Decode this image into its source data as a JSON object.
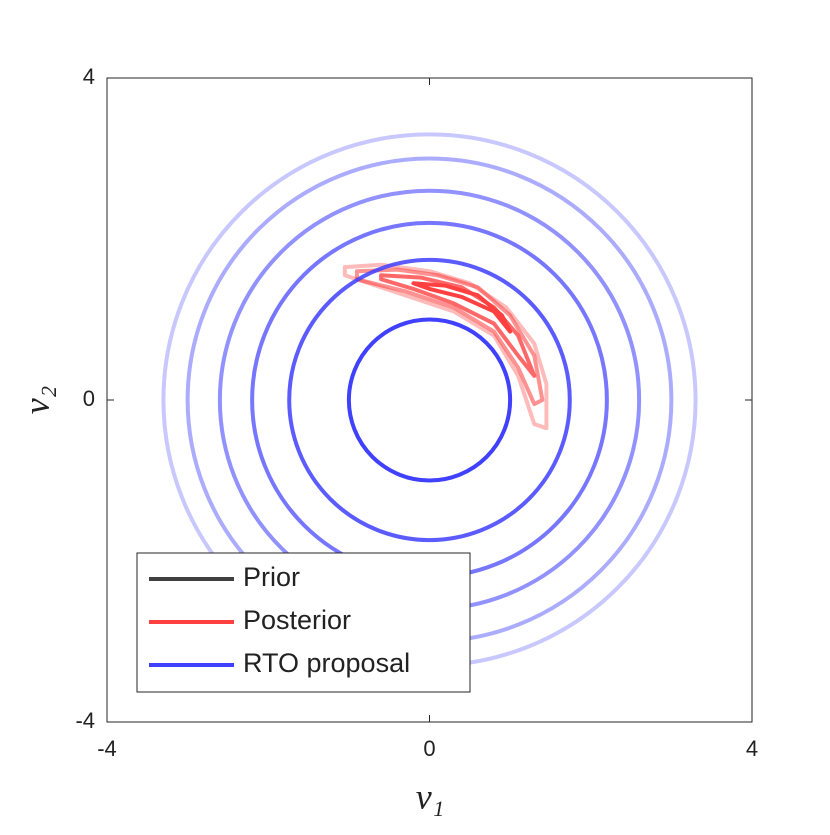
{
  "chart_data": {
    "type": "contour",
    "xlabel": "v₁",
    "ylabel": "v₂",
    "xlim": [
      -4,
      4
    ],
    "ylim": [
      -4,
      4
    ],
    "xticks": [
      -4,
      0,
      4
    ],
    "yticks": [
      -4,
      0,
      4
    ],
    "legend": "lower left",
    "series": [
      {
        "name": "Prior",
        "color": "#404040"
      },
      {
        "name": "Posterior",
        "color": "#ff4040",
        "contours": [
          {
            "x": [
              -1.05,
              -0.6,
              0,
              0.5,
              0.95,
              1.3,
              1.45,
              1.45,
              1.3,
              1.1,
              0.8,
              0.3,
              -0.3,
              -1.05
            ],
            "y": [
              1.65,
              1.68,
              1.6,
              1.45,
              1.15,
              0.7,
              0.2,
              -0.35,
              -0.3,
              0.3,
              0.8,
              1.1,
              1.3,
              1.55
            ]
          },
          {
            "x": [
              -0.9,
              -0.4,
              0.1,
              0.6,
              1.0,
              1.3,
              1.4,
              1.3,
              1.1,
              0.8,
              0.3,
              -0.3,
              -0.9
            ],
            "y": [
              1.6,
              1.62,
              1.55,
              1.4,
              1.05,
              0.55,
              0.0,
              -0.05,
              0.4,
              0.85,
              1.15,
              1.35,
              1.5
            ]
          },
          {
            "x": [
              -0.6,
              -0.1,
              0.4,
              0.8,
              1.1,
              1.3,
              1.1,
              0.8,
              0.3,
              -0.2,
              -0.6
            ],
            "y": [
              1.55,
              1.52,
              1.4,
              1.15,
              0.8,
              0.3,
              0.55,
              0.95,
              1.2,
              1.38,
              1.5
            ]
          },
          {
            "x": [
              -0.2,
              0.2,
              0.6,
              0.9,
              1.0,
              0.8,
              0.4,
              0.0,
              -0.2
            ],
            "y": [
              1.45,
              1.42,
              1.3,
              1.05,
              0.85,
              1.1,
              1.28,
              1.38,
              1.45
            ]
          }
        ]
      },
      {
        "name": "RTO proposal",
        "color": "#4040ff",
        "radii": [
          1,
          1.74,
          2.2,
          2.6,
          3.0,
          3.3
        ]
      }
    ]
  }
}
